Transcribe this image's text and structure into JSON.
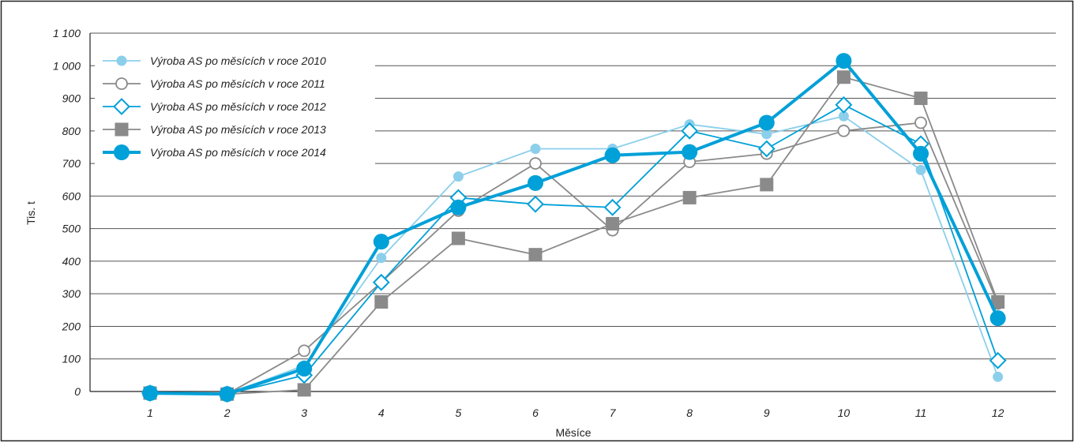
{
  "chart_data": {
    "type": "line",
    "title": "",
    "xlabel": "Měsíce",
    "ylabel": "Tis. t",
    "categories": [
      "1",
      "2",
      "3",
      "4",
      "5",
      "6",
      "7",
      "8",
      "9",
      "10",
      "11",
      "12"
    ],
    "ylim": [
      0,
      1100
    ],
    "yticks": [
      0,
      100,
      200,
      300,
      400,
      500,
      600,
      700,
      800,
      900,
      1000,
      1100
    ],
    "ytick_labels": [
      "0",
      "100",
      "200",
      "300",
      "400",
      "500",
      "600",
      "700",
      "800",
      "900",
      "1 000",
      "1 100"
    ],
    "grid": "horizontal",
    "legend_position": "top-left",
    "series": [
      {
        "name": "Výroba AS po měsících v roce 2010",
        "color": "#8ccfeb",
        "marker": "circle-filled",
        "values": [
          -5,
          -8,
          80,
          410,
          660,
          745,
          745,
          820,
          790,
          845,
          680,
          45
        ]
      },
      {
        "name": "Výroba AS po měsících v roce 2011",
        "color": "#8a8a8a",
        "marker": "circle-open",
        "values": [
          -5,
          -8,
          125,
          335,
          555,
          700,
          495,
          705,
          730,
          800,
          825,
          270
        ]
      },
      {
        "name": "Výroba AS po měsících v roce 2012",
        "color": "#00a0d8",
        "marker": "diamond-open",
        "values": [
          -5,
          -8,
          50,
          335,
          595,
          575,
          565,
          800,
          745,
          880,
          760,
          95
        ]
      },
      {
        "name": "Výroba AS po měsících v roce 2013",
        "color": "#8a8a8a",
        "marker": "square-filled",
        "values": [
          -5,
          -8,
          5,
          275,
          470,
          420,
          515,
          595,
          635,
          965,
          900,
          275
        ]
      },
      {
        "name": "Výroba AS po měsících v roce 2014",
        "color": "#00a0d8",
        "marker": "circle-filled-large",
        "values": [
          -5,
          -8,
          70,
          460,
          565,
          640,
          725,
          735,
          825,
          1015,
          730,
          225
        ]
      }
    ]
  }
}
